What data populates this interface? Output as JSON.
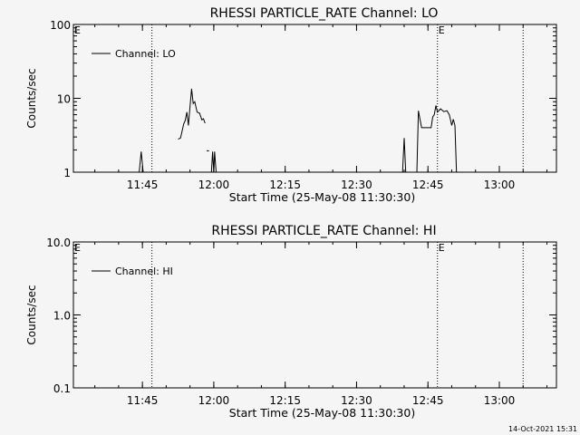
{
  "footer": {
    "timestamp": "14-Oct-2021 15:31"
  },
  "chart_data": [
    {
      "type": "line",
      "title": "RHESSI PARTICLE_RATE Channel: LO",
      "xlabel": "Start Time (25-May-08 11:30:30)",
      "ylabel": "Counts/sec",
      "y_scale": "log",
      "ylim": [
        1,
        100
      ],
      "xlim": [
        "11:30:30",
        "13:12:00"
      ],
      "x_ticks": [
        "11:45",
        "12:00",
        "12:15",
        "12:30",
        "12:45",
        "13:00"
      ],
      "y_ticks": [
        "1",
        "10",
        "100"
      ],
      "legend": {
        "position": "top-left",
        "entries": [
          "Channel: LO"
        ]
      },
      "event_markers": [
        {
          "time": "11:47:00",
          "label": ""
        },
        {
          "time": "12:47:00",
          "label": "E"
        },
        {
          "time": "13:05:00",
          "label": ""
        }
      ],
      "corner_label": "E",
      "series": [
        {
          "name": "Channel: LO",
          "segments": [
            [
              [
                "11:44:20",
                1
              ],
              [
                "11:44:45",
                1.9
              ],
              [
                "11:45:10",
                1
              ]
            ],
            [
              [
                "11:52:30",
                2.8
              ],
              [
                "11:53:00",
                2.9
              ],
              [
                "11:53:40",
                4.5
              ],
              [
                "11:54:00",
                5.0
              ],
              [
                "11:54:20",
                6.5
              ],
              [
                "11:54:40",
                4.3
              ],
              [
                "11:55:20",
                13.5
              ],
              [
                "11:55:40",
                8.5
              ],
              [
                "11:56:00",
                9.0
              ],
              [
                "11:56:30",
                6.5
              ],
              [
                "11:57:00",
                6.3
              ],
              [
                "11:57:30",
                5.1
              ],
              [
                "11:57:50",
                5.3
              ],
              [
                "11:58:10",
                4.6
              ]
            ],
            [
              [
                "11:58:30",
                1.95
              ],
              [
                "11:59:00",
                1.95
              ]
            ],
            [
              [
                "11:59:30",
                1
              ],
              [
                "11:59:45",
                1.9
              ],
              [
                "12:00:00",
                1
              ],
              [
                "12:00:10",
                1.9
              ],
              [
                "12:00:30",
                1
              ]
            ],
            [
              [
                "12:39:40",
                1
              ],
              [
                "12:40:00",
                2.9
              ],
              [
                "12:40:20",
                1
              ]
            ],
            [
              [
                "12:42:40",
                1
              ],
              [
                "12:43:00",
                6.8
              ],
              [
                "12:43:40",
                4.0
              ],
              [
                "12:45:40",
                4.0
              ],
              [
                "12:46:00",
                5.6
              ],
              [
                "12:46:20",
                6.0
              ],
              [
                "12:46:40",
                8.0
              ],
              [
                "12:47:00",
                6.5
              ],
              [
                "12:47:40",
                7.2
              ],
              [
                "12:48:20",
                6.6
              ],
              [
                "12:49:00",
                6.8
              ],
              [
                "12:49:30",
                6.0
              ],
              [
                "12:50:00",
                4.3
              ],
              [
                "12:50:20",
                5.2
              ],
              [
                "12:50:40",
                4.3
              ],
              [
                "12:51:00",
                1
              ]
            ]
          ]
        }
      ]
    },
    {
      "type": "line",
      "title": "RHESSI PARTICLE_RATE Channel: HI",
      "xlabel": "Start Time (25-May-08 11:30:30)",
      "ylabel": "Counts/sec",
      "y_scale": "log",
      "ylim": [
        0.1,
        10
      ],
      "xlim": [
        "11:30:30",
        "13:12:00"
      ],
      "x_ticks": [
        "11:45",
        "12:00",
        "12:15",
        "12:30",
        "12:45",
        "13:00"
      ],
      "y_ticks": [
        "0.1",
        "1.0",
        "10.0"
      ],
      "legend": {
        "position": "top-left",
        "entries": [
          "Channel: HI"
        ]
      },
      "event_markers": [
        {
          "time": "11:47:00",
          "label": ""
        },
        {
          "time": "12:47:00",
          "label": "E"
        },
        {
          "time": "13:05:00",
          "label": ""
        }
      ],
      "corner_label": "E",
      "series": [
        {
          "name": "Channel: HI",
          "segments": []
        }
      ]
    }
  ]
}
